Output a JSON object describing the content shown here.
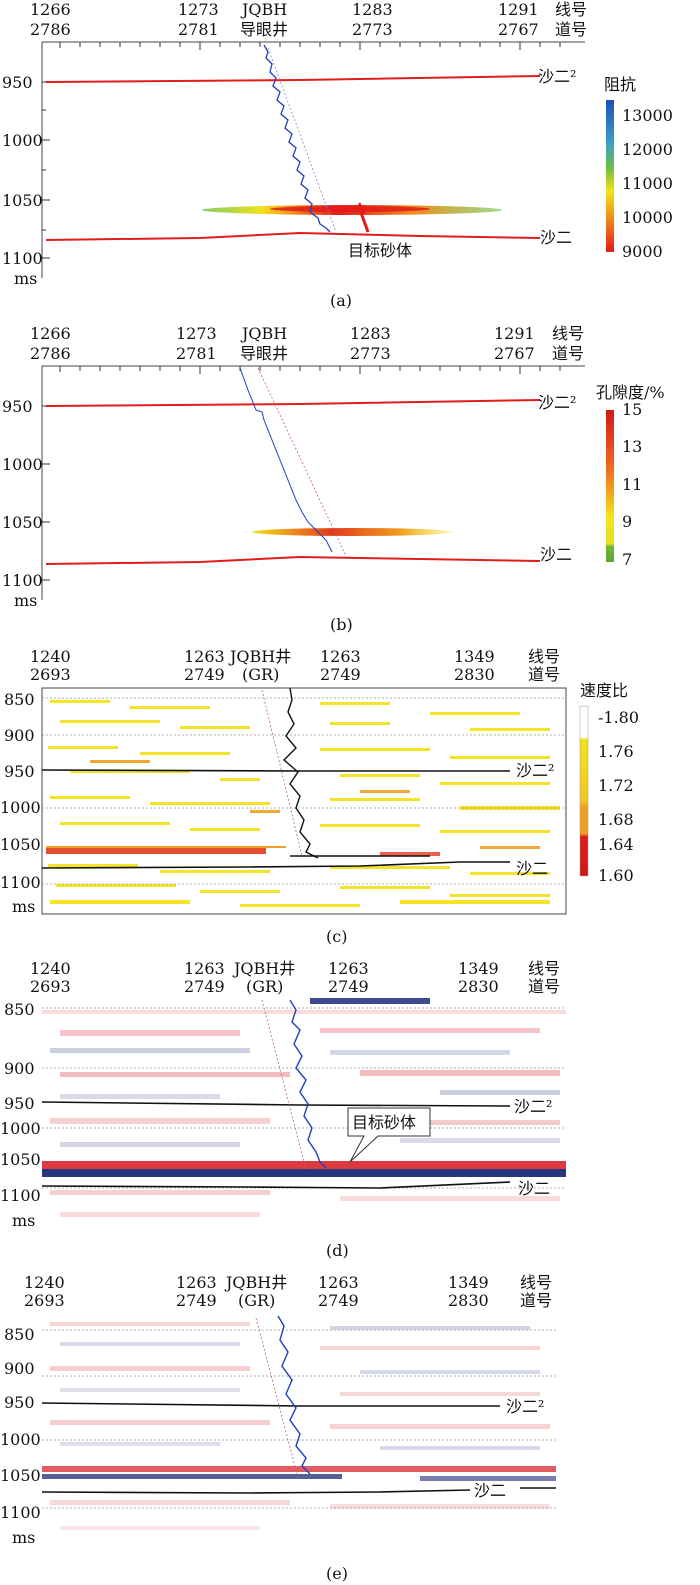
{
  "panels": [
    {
      "caption": "(a)",
      "top_traces": [
        "1266",
        "1273",
        "1283",
        "1291"
      ],
      "top_lines": [
        "2786",
        "2781",
        "2773",
        "2767"
      ],
      "well_label_1": "JQBH",
      "well_label_2": "导眼井",
      "axis_right_1": "线号",
      "axis_right_2": "道号",
      "y_ticks": [
        "950",
        "1000",
        "1050",
        "1100"
      ],
      "y_unit": "ms",
      "horizon_top": "沙二²",
      "horizon_bottom": "沙二",
      "annotation": "目标砂体",
      "colorbar_title": "阻抗",
      "colorbar_ticks": [
        "13000",
        "12000",
        "11000",
        "10000",
        "9000"
      ]
    },
    {
      "caption": "(b)",
      "top_traces": [
        "1266",
        "1273",
        "1283",
        "1291"
      ],
      "top_lines": [
        "2786",
        "2781",
        "2773",
        "2767"
      ],
      "well_label_1": "JQBH",
      "well_label_2": "导眼井",
      "axis_right_1": "线号",
      "axis_right_2": "道号",
      "y_ticks": [
        "950",
        "1000",
        "1050",
        "1100"
      ],
      "y_unit": "ms",
      "horizon_top": "沙二²",
      "horizon_bottom": "沙二",
      "colorbar_title": "孔隙度/%",
      "colorbar_ticks": [
        "15",
        "13",
        "11",
        "9",
        "7"
      ]
    },
    {
      "caption": "(c)",
      "top_traces": [
        "1240",
        "1263",
        "1263",
        "1349"
      ],
      "top_lines": [
        "2693",
        "2749",
        "2749",
        "2830"
      ],
      "well_label_1": "JQBH井",
      "well_label_2": "(GR)",
      "axis_right_1": "线号",
      "axis_right_2": "道号",
      "y_ticks": [
        "850",
        "900",
        "950",
        "1000",
        "1050",
        "1100"
      ],
      "y_unit": "ms",
      "horizon_top": "沙二²",
      "horizon_bottom": "沙二",
      "colorbar_title": "速度比",
      "colorbar_ticks": [
        "-1.80",
        "1.76",
        "1.72",
        "1.68",
        "1.64",
        "1.60"
      ]
    },
    {
      "caption": "(d)",
      "top_traces": [
        "1240",
        "1263",
        "1263",
        "1349"
      ],
      "top_lines": [
        "2693",
        "2749",
        "2749",
        "2830"
      ],
      "well_label_1": "JQBH井",
      "well_label_2": "(GR)",
      "axis_right_1": "线号",
      "axis_right_2": "道号",
      "y_ticks": [
        "850",
        "900",
        "950",
        "1000",
        "1050",
        "1100"
      ],
      "y_unit": "ms",
      "horizon_top": "沙二²",
      "horizon_bottom": "沙二",
      "annotation": "目标砂体"
    },
    {
      "caption": "(e)",
      "top_traces": [
        "1240",
        "1263",
        "1263",
        "1349"
      ],
      "top_lines": [
        "2693",
        "2749",
        "2749",
        "2830"
      ],
      "well_label_1": "JQBH井",
      "well_label_2": "(GR)",
      "axis_right_1": "线号",
      "axis_right_2": "道号",
      "y_ticks": [
        "850",
        "900",
        "950",
        "1000",
        "1050",
        "1100"
      ],
      "y_unit": "ms",
      "horizon_top": "沙二²",
      "horizon_bottom": "沙二"
    }
  ],
  "colors": {
    "horizon_red": "#e21b1b",
    "horizon_black": "#111111",
    "well_blue": "#1f3fbf",
    "seismic_red": "#d7262b",
    "seismic_blue": "#1b2a78",
    "attr_yellow": "#f4e21b",
    "attr_orange": "#f0a020"
  }
}
